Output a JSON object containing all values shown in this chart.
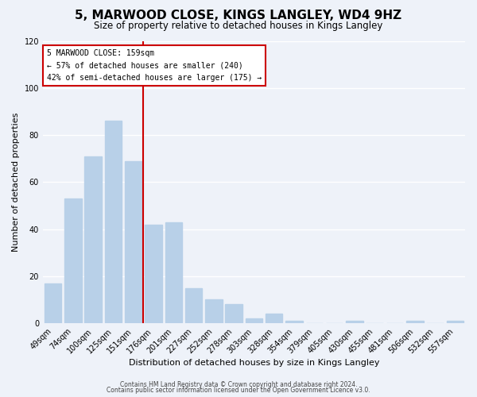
{
  "title": "5, MARWOOD CLOSE, KINGS LANGLEY, WD4 9HZ",
  "subtitle": "Size of property relative to detached houses in Kings Langley",
  "xlabel": "Distribution of detached houses by size in Kings Langley",
  "ylabel": "Number of detached properties",
  "bar_labels": [
    "49sqm",
    "74sqm",
    "100sqm",
    "125sqm",
    "151sqm",
    "176sqm",
    "201sqm",
    "227sqm",
    "252sqm",
    "278sqm",
    "303sqm",
    "328sqm",
    "354sqm",
    "379sqm",
    "405sqm",
    "430sqm",
    "455sqm",
    "481sqm",
    "506sqm",
    "532sqm",
    "557sqm"
  ],
  "bar_values": [
    17,
    53,
    71,
    86,
    69,
    42,
    43,
    15,
    10,
    8,
    2,
    4,
    1,
    0,
    0,
    1,
    0,
    0,
    1,
    0,
    1
  ],
  "bar_color": "#b8d0e8",
  "annotation_line1": "5 MARWOOD CLOSE: 159sqm",
  "annotation_line2": "← 57% of detached houses are smaller (240)",
  "annotation_line3": "42% of semi-detached houses are larger (175) →",
  "annotation_box_facecolor": "#ffffff",
  "annotation_box_edgecolor": "#cc0000",
  "vline_color": "#cc0000",
  "ylim": [
    0,
    120
  ],
  "yticks": [
    0,
    20,
    40,
    60,
    80,
    100,
    120
  ],
  "footer1": "Contains HM Land Registry data © Crown copyright and database right 2024.",
  "footer2": "Contains public sector information licensed under the Open Government Licence v3.0.",
  "bg_color": "#eef2f9",
  "plot_bg_color": "#eef2f9",
  "title_fontsize": 11,
  "subtitle_fontsize": 8.5,
  "xlabel_fontsize": 8,
  "ylabel_fontsize": 8,
  "tick_fontsize": 7,
  "footer_fontsize": 5.5,
  "vline_x": 4.5
}
